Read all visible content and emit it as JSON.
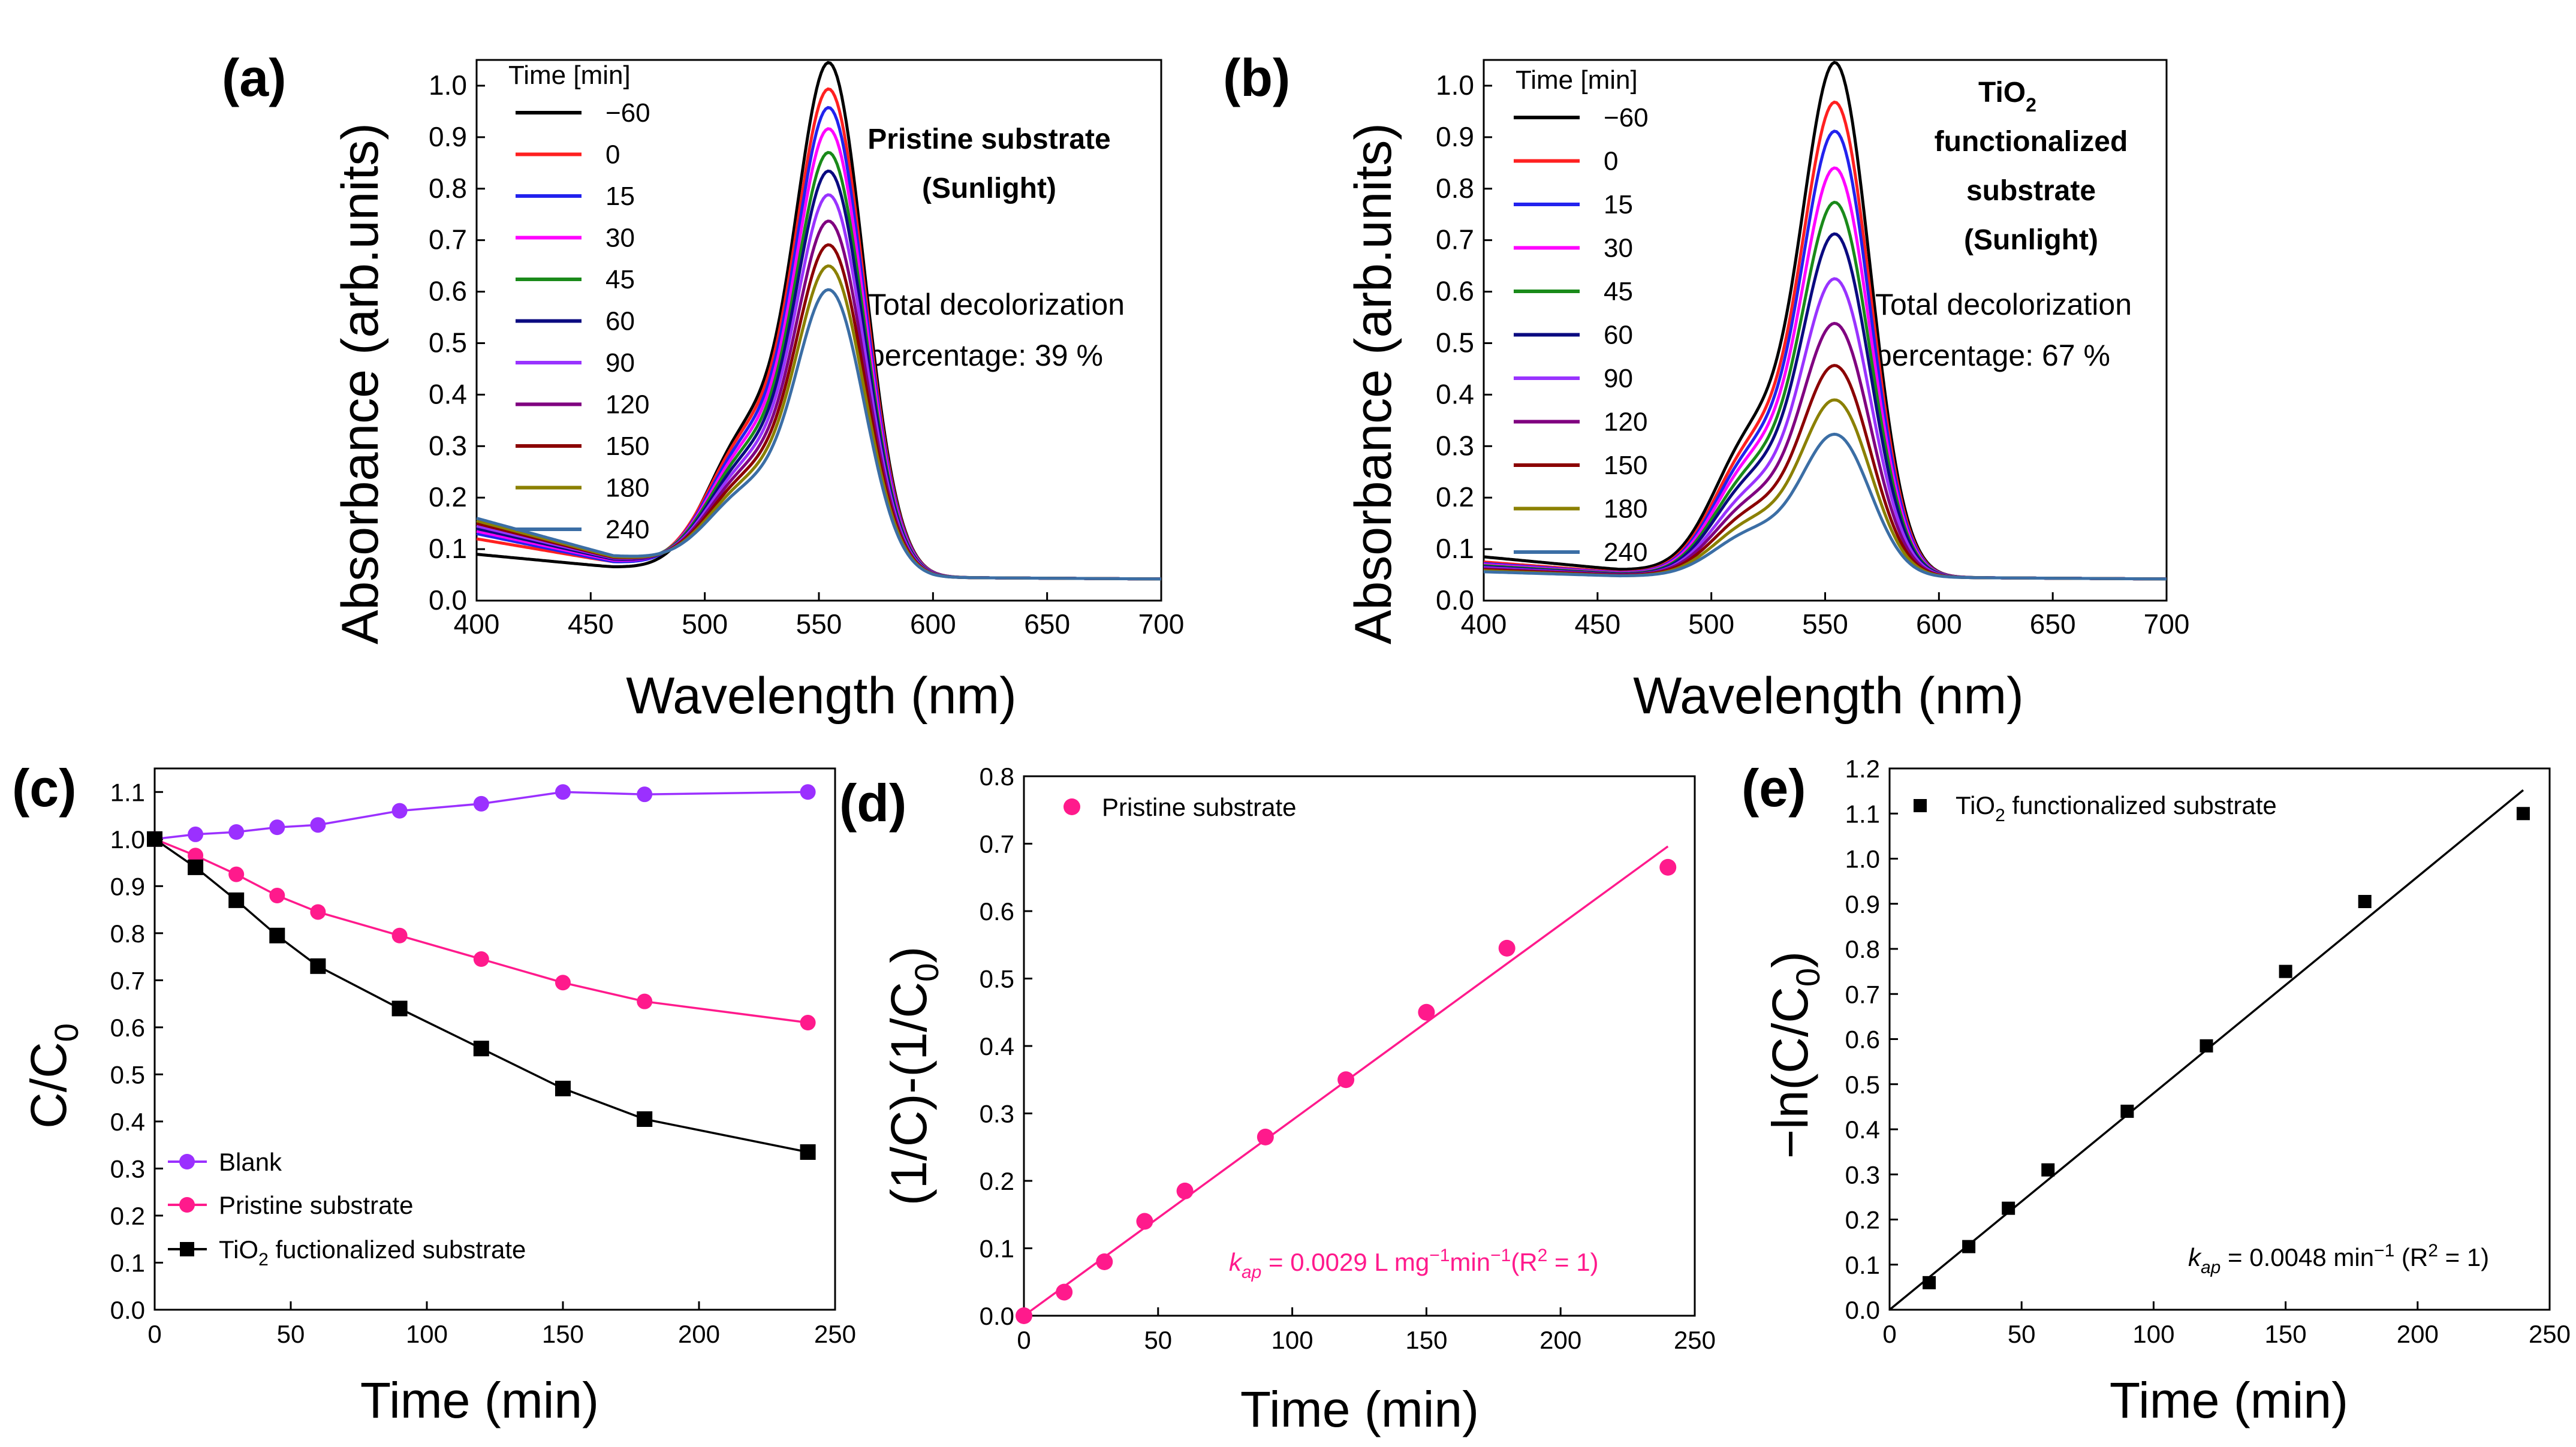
{
  "chart_data": [
    {
      "panel": "(a)",
      "type": "line",
      "xlabel": "Wavelength (nm)",
      "ylabel": "Absorbance (arb.units)",
      "xlim": [
        400,
        700
      ],
      "ylim": [
        0,
        1.05
      ],
      "xticks": [
        400,
        450,
        500,
        550,
        600,
        650,
        700
      ],
      "yticks": [
        0.0,
        0.1,
        0.2,
        0.3,
        0.4,
        0.5,
        0.6,
        0.7,
        0.8,
        0.9,
        1.0
      ],
      "legend_title": "Time [min]",
      "annotations": [
        "Pristine substrate",
        "(Sunlight)",
        "Total decolorization",
        "percentage: 39 %"
      ],
      "series": [
        {
          "name": "−60",
          "color": "#000000",
          "peak": 1.02,
          "shoulder": 0.405,
          "start": 0.09,
          "valley": 0.065
        },
        {
          "name": "0",
          "color": "#ff2020",
          "peak": 0.97,
          "shoulder": 0.39,
          "start": 0.12,
          "valley": 0.075
        },
        {
          "name": "15",
          "color": "#2222ee",
          "peak": 0.935,
          "shoulder": 0.375,
          "start": 0.13,
          "valley": 0.075
        },
        {
          "name": "30",
          "color": "#ff00ff",
          "peak": 0.895,
          "shoulder": 0.36,
          "start": 0.135,
          "valley": 0.078
        },
        {
          "name": "45",
          "color": "#1a8a1a",
          "peak": 0.85,
          "shoulder": 0.345,
          "start": 0.14,
          "valley": 0.08
        },
        {
          "name": "60",
          "color": "#0a0a80",
          "peak": 0.815,
          "shoulder": 0.33,
          "start": 0.14,
          "valley": 0.08
        },
        {
          "name": "90",
          "color": "#9933ff",
          "peak": 0.77,
          "shoulder": 0.315,
          "start": 0.145,
          "valley": 0.082
        },
        {
          "name": "120",
          "color": "#800080",
          "peak": 0.72,
          "shoulder": 0.3,
          "start": 0.15,
          "valley": 0.083
        },
        {
          "name": "150",
          "color": "#8b0000",
          "peak": 0.675,
          "shoulder": 0.285,
          "start": 0.15,
          "valley": 0.084
        },
        {
          "name": "180",
          "color": "#8b8000",
          "peak": 0.635,
          "shoulder": 0.27,
          "start": 0.155,
          "valley": 0.085
        },
        {
          "name": "240",
          "color": "#3b6ea5",
          "peak": 0.59,
          "shoulder": 0.255,
          "start": 0.16,
          "valley": 0.087
        }
      ]
    },
    {
      "panel": "(b)",
      "type": "line",
      "xlabel": "Wavelength (nm)",
      "ylabel": "Absorbance (arb.units)",
      "xlim": [
        400,
        700
      ],
      "ylim": [
        0,
        1.05
      ],
      "xticks": [
        400,
        450,
        500,
        550,
        600,
        650,
        700
      ],
      "yticks": [
        0.0,
        0.1,
        0.2,
        0.3,
        0.4,
        0.5,
        0.6,
        0.7,
        0.8,
        0.9,
        1.0
      ],
      "legend_title": "Time [min]",
      "annotations": [
        "TiO",
        "2",
        "functionalized",
        "substrate",
        "(Sunlight)",
        "Total decolorization",
        "percentage: 67 %"
      ],
      "series": [
        {
          "name": "−60",
          "color": "#000000",
          "peak": 1.02,
          "shoulder": 0.405,
          "start": 0.085,
          "valley": 0.06
        },
        {
          "name": "0",
          "color": "#ff2020",
          "peak": 0.945,
          "shoulder": 0.375,
          "start": 0.075,
          "valley": 0.055
        },
        {
          "name": "15",
          "color": "#2222ee",
          "peak": 0.89,
          "shoulder": 0.355,
          "start": 0.072,
          "valley": 0.054
        },
        {
          "name": "30",
          "color": "#ff00ff",
          "peak": 0.82,
          "shoulder": 0.335,
          "start": 0.07,
          "valley": 0.053
        },
        {
          "name": "45",
          "color": "#1a8a1a",
          "peak": 0.755,
          "shoulder": 0.31,
          "start": 0.068,
          "valley": 0.052
        },
        {
          "name": "60",
          "color": "#0a0a80",
          "peak": 0.695,
          "shoulder": 0.29,
          "start": 0.066,
          "valley": 0.051
        },
        {
          "name": "90",
          "color": "#9933ff",
          "peak": 0.61,
          "shoulder": 0.26,
          "start": 0.064,
          "valley": 0.05
        },
        {
          "name": "120",
          "color": "#800080",
          "peak": 0.525,
          "shoulder": 0.235,
          "start": 0.062,
          "valley": 0.05
        },
        {
          "name": "150",
          "color": "#8b0000",
          "peak": 0.445,
          "shoulder": 0.21,
          "start": 0.06,
          "valley": 0.049
        },
        {
          "name": "180",
          "color": "#8b8000",
          "peak": 0.38,
          "shoulder": 0.185,
          "start": 0.058,
          "valley": 0.048
        },
        {
          "name": "240",
          "color": "#3b6ea5",
          "peak": 0.315,
          "shoulder": 0.16,
          "start": 0.056,
          "valley": 0.048
        }
      ]
    },
    {
      "panel": "(c)",
      "type": "line",
      "xlabel": "Time (min)",
      "ylabel": "C/C0",
      "ylabel_main": "C/C",
      "ylabel_sub": "0",
      "xlim": [
        0,
        250
      ],
      "ylim": [
        0,
        1.15
      ],
      "xticks": [
        0,
        50,
        100,
        150,
        200,
        250
      ],
      "yticks": [
        0.0,
        0.1,
        0.2,
        0.3,
        0.4,
        0.5,
        0.6,
        0.7,
        0.8,
        0.9,
        1.0,
        1.1
      ],
      "x": [
        0,
        15,
        30,
        45,
        60,
        90,
        120,
        150,
        180,
        240
      ],
      "series": [
        {
          "name": "Blank",
          "color": "#9b30ff",
          "marker": "circle",
          "values": [
            1.0,
            1.01,
            1.015,
            1.025,
            1.03,
            1.06,
            1.075,
            1.1,
            1.095,
            1.1
          ]
        },
        {
          "name": "Pristine substrate",
          "color": "#ff1a8c",
          "marker": "circle",
          "values": [
            1.0,
            0.965,
            0.925,
            0.88,
            0.845,
            0.795,
            0.745,
            0.695,
            0.655,
            0.61
          ]
        },
        {
          "name": "TiO2 fuctionalized substrate",
          "name_main": "TiO",
          "name_sub": "2",
          "name_rest": " fuctionalized substrate",
          "color": "#000000",
          "marker": "square",
          "values": [
            1.0,
            0.94,
            0.87,
            0.795,
            0.73,
            0.64,
            0.555,
            0.47,
            0.405,
            0.335
          ]
        }
      ]
    },
    {
      "panel": "(d)",
      "type": "scatter",
      "xlabel": "Time (min)",
      "ylabel": "(1/C)-(1/C0)",
      "ylabel_main": "(1/C)-(1/C",
      "ylabel_sub": "0",
      "ylabel_close": ")",
      "xlim": [
        0,
        250
      ],
      "ylim": [
        0,
        0.8
      ],
      "xticks": [
        0,
        50,
        100,
        150,
        200,
        250
      ],
      "yticks": [
        0.0,
        0.1,
        0.2,
        0.3,
        0.4,
        0.5,
        0.6,
        0.7,
        0.8
      ],
      "legend": "Pristine substrate",
      "fit_slope": 0.0029,
      "fit_x": [
        0,
        240
      ],
      "equation": {
        "k": "k",
        "sub": "ap",
        "text": " = 0.0029 L mg",
        "sup1": "−1",
        "mid": "min",
        "sup2": "−1",
        "tail": "(R",
        "sup3": "2",
        "end": " = 1)"
      },
      "color": "#ff1a8c",
      "x": [
        0,
        15,
        30,
        45,
        60,
        90,
        120,
        150,
        180,
        240
      ],
      "values": [
        0.0,
        0.035,
        0.08,
        0.14,
        0.185,
        0.265,
        0.35,
        0.45,
        0.545,
        0.665
      ]
    },
    {
      "panel": "(e)",
      "type": "scatter",
      "xlabel": "Time (min)",
      "ylabel": "-ln(C/C0)",
      "ylabel_main": "−ln(C/C",
      "ylabel_sub": "0",
      "ylabel_close": ")",
      "xlim": [
        0,
        250
      ],
      "ylim": [
        0,
        1.2
      ],
      "xticks": [
        0,
        50,
        100,
        150,
        200,
        250
      ],
      "yticks": [
        0.0,
        0.1,
        0.2,
        0.3,
        0.4,
        0.5,
        0.6,
        0.7,
        0.8,
        0.9,
        1.0,
        1.1,
        1.2
      ],
      "legend": "TiO2 functionalized substrate",
      "legend_main": "TiO",
      "legend_sub": "2",
      "legend_rest": " functionalized substrate",
      "fit_slope": 0.0048,
      "fit_x": [
        0,
        240
      ],
      "equation": {
        "k": "k",
        "sub": "ap",
        "text": " = 0.0048 min",
        "sup1": "−1",
        "tail": " (R",
        "sup3": "2",
        "end": " = 1)"
      },
      "color": "#000000",
      "x": [
        15,
        30,
        45,
        60,
        90,
        120,
        150,
        180,
        240
      ],
      "values": [
        0.06,
        0.14,
        0.225,
        0.31,
        0.44,
        0.585,
        0.75,
        0.905,
        1.1
      ]
    }
  ]
}
